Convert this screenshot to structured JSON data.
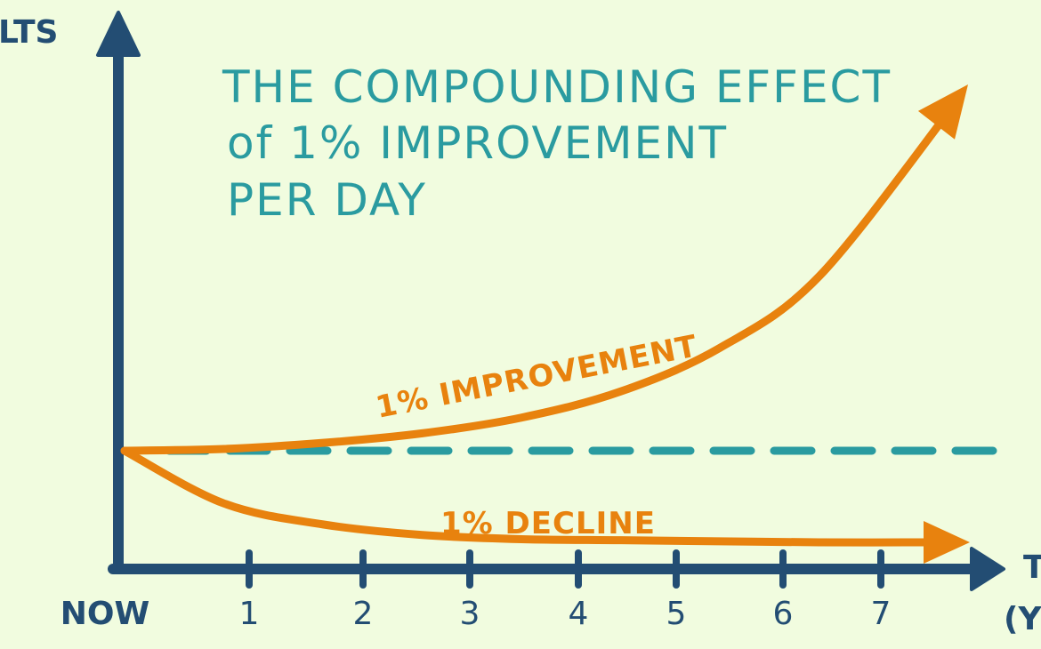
{
  "chart_data": {
    "type": "line",
    "title": "THE COMPOUNDING EFFECT of 1% IMPROVEMENT PER DAY",
    "title_lines": [
      "THE COMPOUNDING EFFECT",
      "of 1% IMPROVEMENT",
      "PER DAY"
    ],
    "ylabel_visible": "LTS",
    "xlabel_visible": "T",
    "xlabel_unit_visible": "(Y",
    "x_tick_labels": [
      "NOW",
      "1",
      "2",
      "3",
      "4",
      "5",
      "6",
      "7"
    ],
    "x_ticks": [
      0,
      1,
      2,
      3,
      4,
      5,
      6,
      7
    ],
    "xlim": [
      0,
      8.5
    ],
    "baseline": 1.0,
    "series": [
      {
        "name": "1% IMPROVEMENT",
        "x": [
          0,
          1,
          2,
          3,
          4,
          5,
          6,
          7,
          8.5
        ],
        "values": [
          1.0,
          1.02,
          1.09,
          1.2,
          1.38,
          1.68,
          2.18,
          3.0,
          5.2
        ]
      },
      {
        "name": "1% DECLINE",
        "x": [
          0,
          1,
          2,
          3,
          4,
          5,
          6,
          7,
          8
        ],
        "values": [
          1.0,
          0.5,
          0.3,
          0.2,
          0.16,
          0.15,
          0.14,
          0.13,
          0.13
        ]
      }
    ],
    "grid": false,
    "legend": "none",
    "colors": {
      "background": "#f1fcdf",
      "axis": "#234d73",
      "baseline": "#2a9ba0",
      "series": "#e8820e",
      "title": "#2a9ba0"
    }
  }
}
